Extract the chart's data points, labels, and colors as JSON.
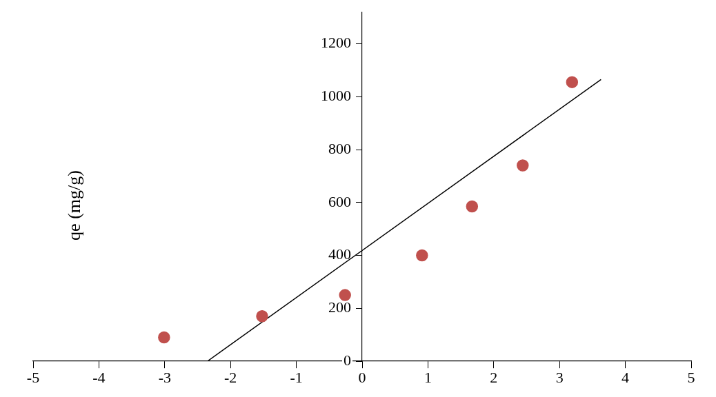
{
  "chart_data": {
    "type": "scatter",
    "ylabel": "qe (mg/g)",
    "xlim": [
      -5,
      5
    ],
    "ylim": [
      0,
      1320
    ],
    "xticks": [
      -5,
      -4,
      -3,
      -2,
      -1,
      0,
      1,
      2,
      3,
      4,
      5
    ],
    "yticks": [
      0,
      200,
      400,
      600,
      800,
      1000,
      1200
    ],
    "grid": false,
    "legend": false,
    "marker": "circle",
    "series": [
      {
        "type": "scatter",
        "color": "#c0504d",
        "x": [
          -3.01,
          -1.52,
          -0.26,
          0.91,
          1.67,
          2.44,
          3.19
        ],
        "values": [
          90,
          170,
          250,
          400,
          585,
          740,
          1055
        ]
      },
      {
        "type": "line",
        "color": "#000000",
        "marker": "none",
        "line_style": "solid",
        "x": [
          -2.35,
          3.63
        ],
        "values": [
          0,
          1065
        ]
      }
    ]
  }
}
